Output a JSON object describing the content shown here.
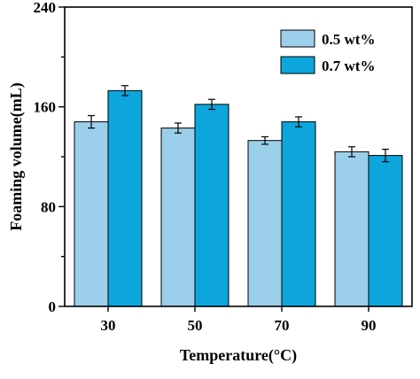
{
  "chart_data": {
    "type": "bar",
    "categories": [
      "30",
      "50",
      "70",
      "90"
    ],
    "series": [
      {
        "name": "0.5 wt%",
        "values": [
          148,
          143,
          133,
          124
        ],
        "errors": [
          5,
          4,
          3,
          4
        ],
        "color": "#9bcfea"
      },
      {
        "name": "0.7 wt%",
        "values": [
          173,
          162,
          148,
          121
        ],
        "errors": [
          4,
          4,
          4,
          5
        ],
        "color": "#0ca6dd"
      }
    ],
    "xlabel": "Temperature(°C)",
    "ylabel": "Foaming volume(mL)",
    "ylim": [
      0,
      240
    ],
    "yticks": [
      0,
      80,
      160,
      240
    ],
    "grid": false,
    "legend_position": "top-right"
  }
}
